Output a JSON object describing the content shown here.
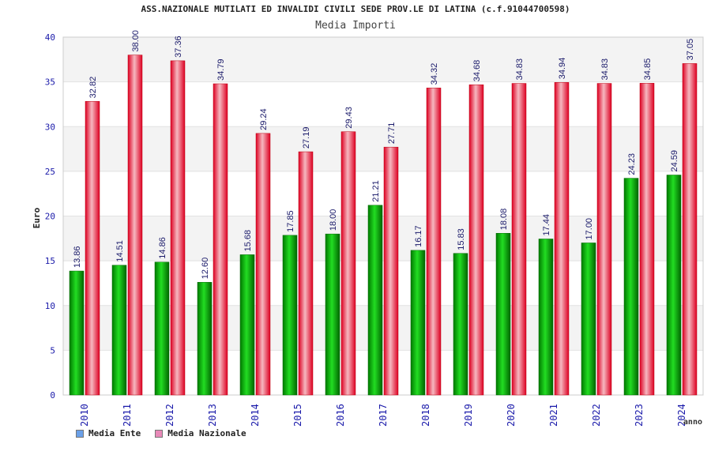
{
  "chart_data": {
    "type": "bar",
    "title": "ASS.NAZIONALE MUTILATI ED INVALIDI CIVILI SEDE PROV.LE DI LATINA (c.f.91044700598)",
    "subtitle": "Media Importi",
    "xlabel": "anno",
    "ylabel": "Euro",
    "ylim": [
      0,
      40
    ],
    "yticks": [
      0,
      5,
      10,
      15,
      20,
      25,
      30,
      35,
      40
    ],
    "grid": true,
    "legend_position": "bottom-left",
    "categories": [
      "2010",
      "2011",
      "2012",
      "2013",
      "2014",
      "2015",
      "2016",
      "2017",
      "2018",
      "2019",
      "2020",
      "2021",
      "2022",
      "2023",
      "2024"
    ],
    "series": [
      {
        "name": "Media Ente",
        "legend_color": "#6aa0e8",
        "color": "#00bb00",
        "values": [
          13.86,
          14.51,
          14.86,
          12.6,
          15.68,
          17.85,
          18.0,
          21.21,
          16.17,
          15.83,
          18.08,
          17.44,
          17.0,
          24.23,
          24.59
        ],
        "labels": [
          "13.86",
          "14.51",
          "14.86",
          "12.60",
          "15.68",
          "17.85",
          "18.00",
          "21.21",
          "16.17",
          "15.83",
          "18.08",
          "17.44",
          "17.00",
          "24.23",
          "24.59"
        ]
      },
      {
        "name": "Media Nazionale",
        "legend_color": "#e889b8",
        "color": "#ee1133",
        "values": [
          32.82,
          38.0,
          37.36,
          34.79,
          29.24,
          27.19,
          29.43,
          27.71,
          34.32,
          34.68,
          34.83,
          34.94,
          34.83,
          34.85,
          37.05
        ],
        "labels": [
          "32.82",
          "38.00",
          "37.36",
          "34.79",
          "29.24",
          "27.19",
          "29.43",
          "27.71",
          "34.32",
          "34.68",
          "34.83",
          "34.94",
          "34.83",
          "34.85",
          "37.05"
        ]
      }
    ]
  }
}
